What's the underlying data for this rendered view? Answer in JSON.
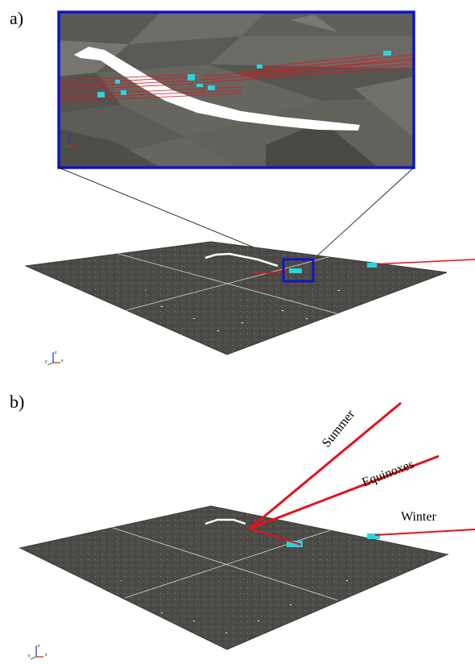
{
  "panels": [
    {
      "label": "a)"
    },
    {
      "label": "b)"
    }
  ],
  "rays": [
    {
      "label": "Summer"
    },
    {
      "label": "Equinoxes"
    },
    {
      "label": "Winter"
    }
  ],
  "axes": {
    "x": "x",
    "y": "y",
    "z": "z"
  },
  "colors": {
    "terrain": "#4b4a46",
    "zoom_terrain": "#66655f",
    "ray": "#e3121b",
    "building": "#26d6e0",
    "highlight_box": "#0f14c8",
    "river": "#ffffff"
  }
}
